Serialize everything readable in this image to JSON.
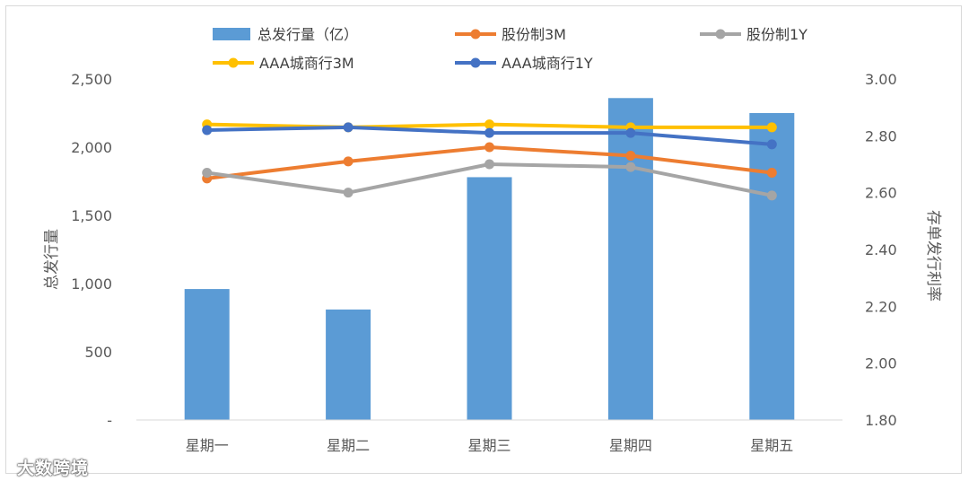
{
  "chart_data": {
    "type": "bar+line",
    "categories": [
      "星期一",
      "星期二",
      "星期三",
      "星期四",
      "星期五"
    ],
    "bars": {
      "name": "总发行量（亿）",
      "color": "#5b9bd5",
      "values": [
        960,
        810,
        1780,
        2360,
        2250
      ],
      "axis": "left"
    },
    "series": [
      {
        "name": "股份制3M",
        "color": "#ed7d31",
        "values": [
          2.65,
          2.71,
          2.76,
          2.73,
          2.67
        ],
        "axis": "right"
      },
      {
        "name": "股份制1Y",
        "color": "#a5a5a5",
        "values": [
          2.67,
          2.6,
          2.7,
          2.69,
          2.59
        ],
        "axis": "right"
      },
      {
        "name": "AAA城商行3M",
        "color": "#ffc000",
        "values": [
          2.84,
          2.83,
          2.84,
          2.83,
          2.83
        ],
        "axis": "right"
      },
      {
        "name": "AAA城商行1Y",
        "color": "#4472c4",
        "values": [
          2.82,
          2.83,
          2.81,
          2.81,
          2.77
        ],
        "axis": "right"
      }
    ],
    "y_left": {
      "label": "总发行量",
      "ylim": [
        0,
        2500
      ],
      "ticks": [
        0,
        500,
        1000,
        1500,
        2000,
        2500
      ],
      "tick_labels": [
        "-",
        "500",
        "1,000",
        "1,500",
        "2,000",
        "2,500"
      ]
    },
    "y_right": {
      "label": "存单发行利率",
      "ylim": [
        1.8,
        3.0
      ],
      "ticks": [
        1.8,
        2.0,
        2.2,
        2.4,
        2.6,
        2.8,
        3.0
      ],
      "tick_labels": [
        "1.80",
        "2.00",
        "2.20",
        "2.40",
        "2.60",
        "2.80",
        "3.00"
      ]
    },
    "grid": false,
    "legend_position": "top"
  },
  "watermark": "大数跨境"
}
